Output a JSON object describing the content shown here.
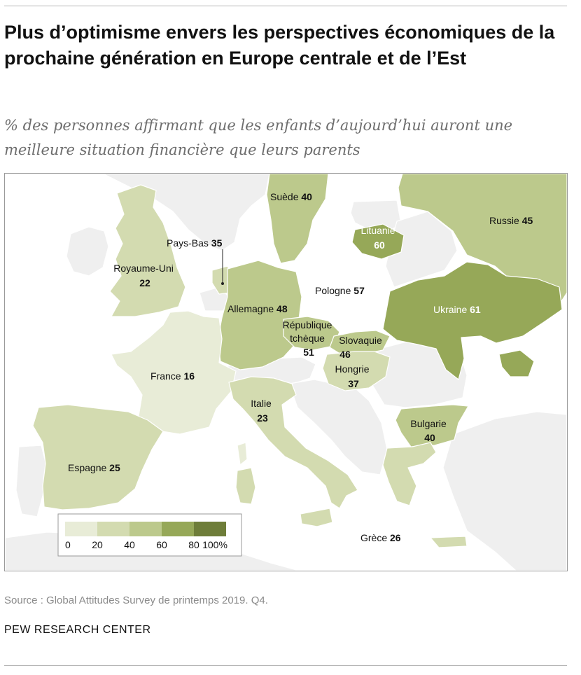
{
  "title": "Plus d’optimisme envers les perspectives économiques de la prochaine génération en Europe centrale et de l’Est",
  "subtitle": "% des personnes affirmant que les enfants d’aujourd’hui auront une meilleure situation financière que leurs parents",
  "source": "Source : Global Attitudes Survey de printemps 2019. Q4.",
  "organization": "PEW RESEARCH CENTER",
  "colors": {
    "sea": "#ffffff",
    "no_data_land": "#efefef",
    "bin_0_20": "#e8ecd7",
    "bin_20_40": "#d3dbb0",
    "bin_40_60": "#bcc98c",
    "bin_60_80": "#96a858",
    "bin_80_100": "#6e7d39"
  },
  "legend": {
    "ticks": [
      "0",
      "20",
      "40",
      "60",
      "80",
      "100%"
    ]
  },
  "countries": [
    {
      "id": "royaume-uni",
      "name": "Royaume-Uni",
      "value": 22
    },
    {
      "id": "pays-bas",
      "name": "Pays-Bas",
      "value": 35
    },
    {
      "id": "suede",
      "name": "Suède",
      "value": 40
    },
    {
      "id": "lituanie",
      "name": "Lituanie",
      "value": 60
    },
    {
      "id": "russie",
      "name": "Russie",
      "value": 45
    },
    {
      "id": "allemagne",
      "name": "Allemagne",
      "value": 48
    },
    {
      "id": "pologne",
      "name": "Pologne",
      "value": 57
    },
    {
      "id": "ukraine",
      "name": "Ukraine",
      "value": 61
    },
    {
      "id": "republique-tcheque",
      "name_lines": [
        "République",
        "tchèque"
      ],
      "value": 51
    },
    {
      "id": "slovaquie",
      "name": "Slovaquie",
      "value": 46
    },
    {
      "id": "france",
      "name": "France",
      "value": 16
    },
    {
      "id": "hongrie",
      "name": "Hongrie",
      "value": 37
    },
    {
      "id": "italie",
      "name": "Italie",
      "value": 23
    },
    {
      "id": "bulgarie",
      "name": "Bulgarie",
      "value": 40
    },
    {
      "id": "espagne",
      "name": "Espagne",
      "value": 25
    },
    {
      "id": "grece",
      "name": "Grèce",
      "value": 26
    }
  ]
}
